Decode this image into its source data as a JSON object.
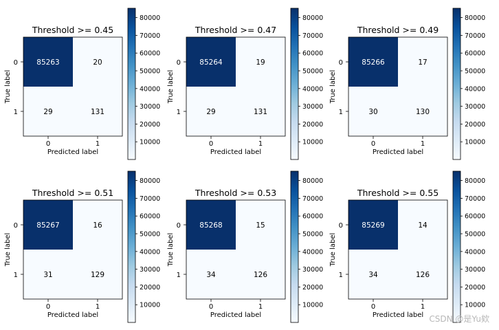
{
  "chart_data": [
    {
      "type": "heatmap",
      "title": "Threshold >= 0.45",
      "xlabel": "Predicted label",
      "ylabel": "True label",
      "x_categories": [
        "0",
        "1"
      ],
      "y_categories": [
        "0",
        "1"
      ],
      "values": [
        [
          85263,
          20
        ],
        [
          29,
          131
        ]
      ],
      "colorbar_ticks": [
        10000,
        20000,
        30000,
        40000,
        50000,
        60000,
        70000,
        80000
      ],
      "colormap": "Blues"
    },
    {
      "type": "heatmap",
      "title": "Threshold >= 0.47",
      "xlabel": "Predicted label",
      "ylabel": "True label",
      "x_categories": [
        "0",
        "1"
      ],
      "y_categories": [
        "0",
        "1"
      ],
      "values": [
        [
          85264,
          19
        ],
        [
          29,
          131
        ]
      ],
      "colorbar_ticks": [
        10000,
        20000,
        30000,
        40000,
        50000,
        60000,
        70000,
        80000
      ],
      "colormap": "Blues"
    },
    {
      "type": "heatmap",
      "title": "Threshold >= 0.49",
      "xlabel": "Predicted label",
      "ylabel": "True label",
      "x_categories": [
        "0",
        "1"
      ],
      "y_categories": [
        "0",
        "1"
      ],
      "values": [
        [
          85266,
          17
        ],
        [
          30,
          130
        ]
      ],
      "colorbar_ticks": [
        10000,
        20000,
        30000,
        40000,
        50000,
        60000,
        70000,
        80000
      ],
      "colormap": "Blues"
    },
    {
      "type": "heatmap",
      "title": "Threshold >= 0.51",
      "xlabel": "Predicted label",
      "ylabel": "True label",
      "x_categories": [
        "0",
        "1"
      ],
      "y_categories": [
        "0",
        "1"
      ],
      "values": [
        [
          85267,
          16
        ],
        [
          31,
          129
        ]
      ],
      "colorbar_ticks": [
        10000,
        20000,
        30000,
        40000,
        50000,
        60000,
        70000,
        80000
      ],
      "colormap": "Blues"
    },
    {
      "type": "heatmap",
      "title": "Threshold >= 0.53",
      "xlabel": "Predicted label",
      "ylabel": "True label",
      "x_categories": [
        "0",
        "1"
      ],
      "y_categories": [
        "0",
        "1"
      ],
      "values": [
        [
          85268,
          15
        ],
        [
          34,
          126
        ]
      ],
      "colorbar_ticks": [
        10000,
        20000,
        30000,
        40000,
        50000,
        60000,
        70000,
        80000
      ],
      "colormap": "Blues"
    },
    {
      "type": "heatmap",
      "title": "Threshold >= 0.55",
      "xlabel": "Predicted label",
      "ylabel": "True label",
      "x_categories": [
        "0",
        "1"
      ],
      "y_categories": [
        "0",
        "1"
      ],
      "values": [
        [
          85269,
          14
        ],
        [
          34,
          126
        ]
      ],
      "colorbar_ticks": [
        10000,
        20000,
        30000,
        40000,
        50000,
        60000,
        70000,
        80000
      ],
      "colormap": "Blues"
    }
  ],
  "watermark": "CSDN @是Yu欸",
  "colors": {
    "cell_max": "#08306b",
    "cell_min": "#f7fbff",
    "text_dark": "#000000",
    "text_light": "#ffffff"
  }
}
